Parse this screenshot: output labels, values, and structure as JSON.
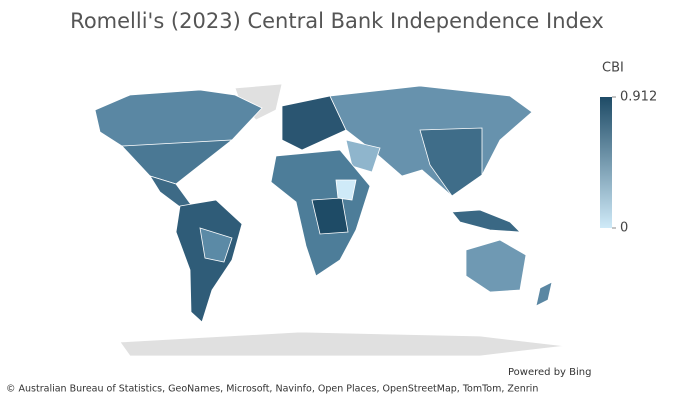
{
  "title": "Romelli's (2023) Central Bank Independence Index",
  "legend": {
    "title": "CBI",
    "max": 0.912,
    "min": 0
  },
  "attribution": {
    "powered_by": "Powered by Bing",
    "credits": "© Australian Bureau of Statistics, GeoNames, Microsoft, Navinfo, Open Places, OpenStreetMap, TomTom, Zenrin"
  }
}
